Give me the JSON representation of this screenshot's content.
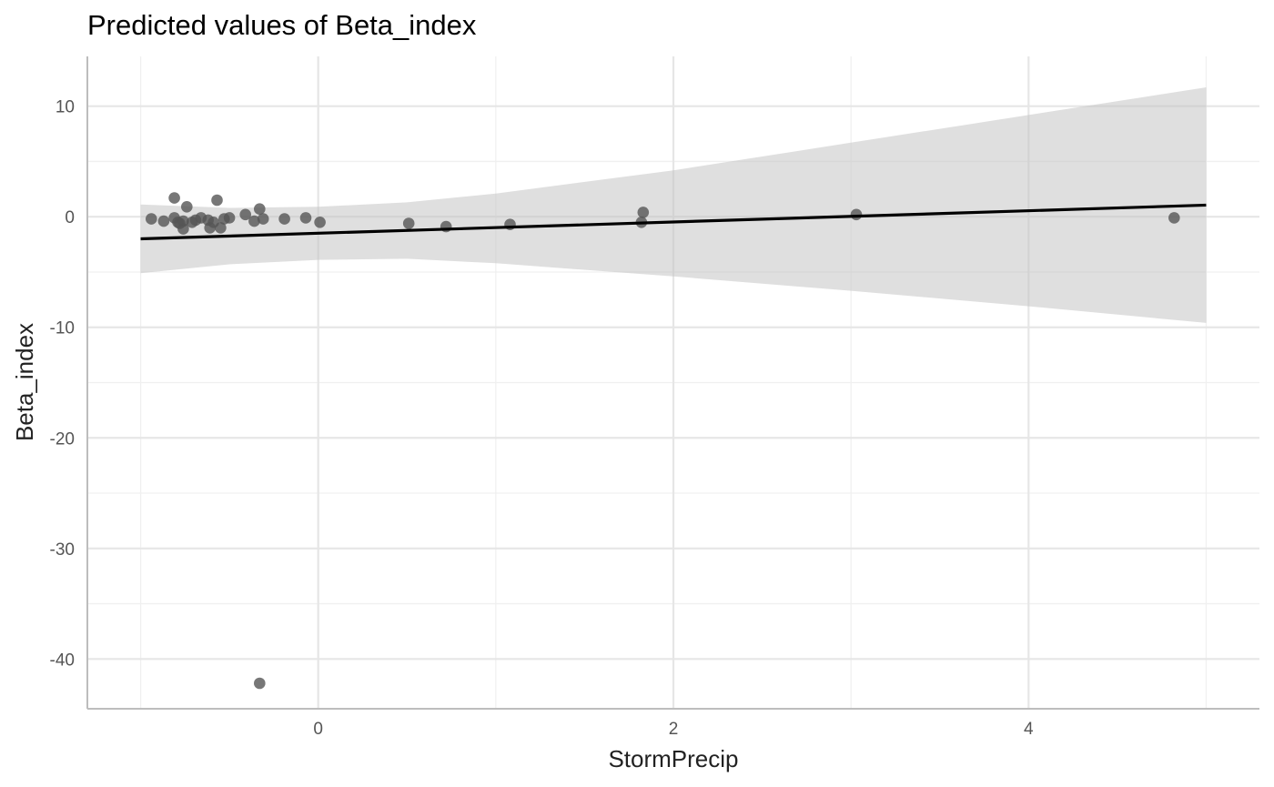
{
  "chart_data": {
    "type": "scatter",
    "title": "Predicted values of Beta_index",
    "xlabel": "StormPrecip",
    "ylabel": "Beta_index",
    "xlim": [
      -1.3,
      5.3
    ],
    "ylim": [
      -44.5,
      14.5
    ],
    "x_ticks": [
      0,
      2,
      4
    ],
    "y_ticks": [
      10,
      0,
      -10,
      -20,
      -30,
      -40
    ],
    "grid": true,
    "colors": {
      "points": "#555555",
      "line": "#000000",
      "ribbon": "#bfbfbf"
    },
    "fit_line": {
      "x": [
        -1.0,
        5.0
      ],
      "y": [
        -2.0,
        1.05
      ]
    },
    "confidence_band": {
      "x": [
        -1.0,
        -0.5,
        0.0,
        0.5,
        1.0,
        2.0,
        3.0,
        4.0,
        5.0
      ],
      "upper": [
        1.1,
        0.8,
        0.9,
        1.3,
        2.1,
        4.2,
        6.7,
        9.2,
        11.7
      ],
      "lower": [
        -5.1,
        -4.3,
        -3.9,
        -3.8,
        -4.2,
        -5.4,
        -6.7,
        -8.1,
        -9.6
      ]
    },
    "points": {
      "x": [
        -0.94,
        -0.87,
        -0.81,
        -0.81,
        -0.79,
        -0.78,
        -0.76,
        -0.76,
        -0.74,
        -0.71,
        -0.69,
        -0.66,
        -0.62,
        -0.61,
        -0.59,
        -0.57,
        -0.55,
        -0.53,
        -0.5,
        -0.41,
        -0.36,
        -0.33,
        -0.31,
        -0.33,
        -0.19,
        -0.07,
        0.01,
        0.51,
        0.72,
        1.08,
        1.83,
        1.82,
        3.03,
        4.82
      ],
      "y": [
        -0.2,
        -0.4,
        1.7,
        -0.1,
        -0.5,
        -0.6,
        -1.1,
        -0.4,
        0.9,
        -0.5,
        -0.3,
        -0.1,
        -0.3,
        -1.0,
        -0.5,
        1.5,
        -1.0,
        -0.2,
        -0.1,
        0.2,
        -0.4,
        0.7,
        -0.2,
        -42.2,
        -0.2,
        -0.1,
        -0.5,
        -0.6,
        -0.9,
        -0.7,
        0.4,
        -0.5,
        0.2,
        -0.1
      ]
    }
  }
}
